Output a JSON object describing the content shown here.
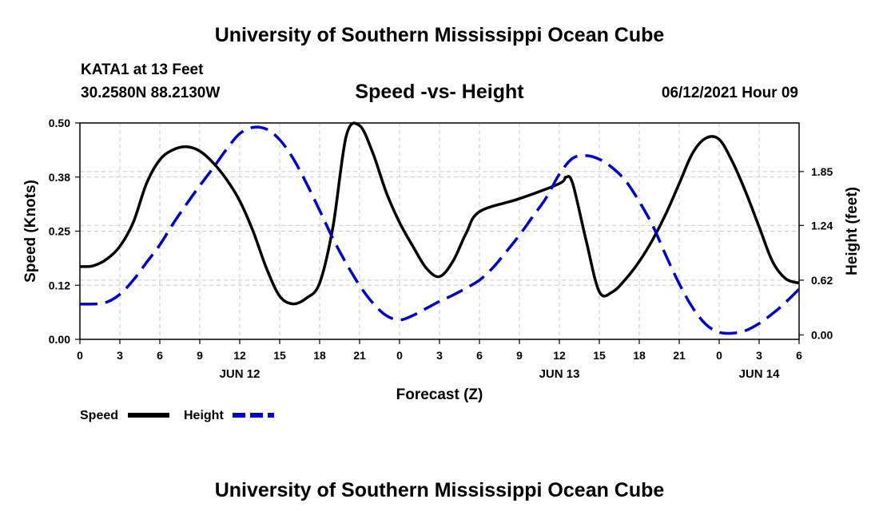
{
  "header": {
    "title": "University of Southern Mississippi Ocean Cube",
    "station": "KATA1 at 13 Feet",
    "coordinates": "30.2580N  88.2130W",
    "subtitle": "Speed -vs- Height",
    "timestamp": "06/12/2021 Hour 09"
  },
  "footer": {
    "title": "University of Southern Mississippi Ocean Cube"
  },
  "chart_data": {
    "type": "line",
    "title": "Speed -vs- Height",
    "xlabel": "Forecast (Z)",
    "ylabel": "Speed (Knots)",
    "y2label": "Height (feet)",
    "xlim": [
      0,
      54
    ],
    "ylim": [
      0,
      0.5
    ],
    "y2lim": [
      -0.05,
      2.4
    ],
    "grid": true,
    "x_tick_positions": [
      0,
      3,
      6,
      9,
      12,
      15,
      18,
      21,
      24,
      27,
      30,
      33,
      36,
      39,
      42,
      45,
      48,
      51,
      54
    ],
    "x_tick_labels": [
      "0",
      "3",
      "6",
      "9",
      "12",
      "15",
      "18",
      "21",
      "0",
      "3",
      "6",
      "9",
      "12",
      "15",
      "18",
      "21",
      "0",
      "3",
      "6"
    ],
    "date_labels": [
      {
        "hour": 12,
        "label": "JUN 12"
      },
      {
        "hour": 36,
        "label": "JUN 13"
      },
      {
        "hour": 51,
        "label": "JUN 14"
      }
    ],
    "y_ticks": [
      0.0,
      0.125,
      0.25,
      0.375,
      0.5
    ],
    "y_tick_labels": [
      "0.00",
      "0.12",
      "0.25",
      "0.38",
      "0.50"
    ],
    "y2_ticks": [
      0.0,
      0.62,
      1.24,
      1.85
    ],
    "y2_tick_labels": [
      "0.00",
      "0.62",
      "1.24",
      "1.85"
    ],
    "legend": {
      "position": "bottom-left",
      "entries": [
        "Speed",
        "Height"
      ]
    },
    "series": [
      {
        "name": "Speed",
        "axis": "left",
        "color": "#000000",
        "dash": "solid",
        "x": [
          0,
          1,
          2,
          3,
          4,
          5,
          6,
          7,
          8,
          9,
          10,
          11,
          12,
          13,
          14,
          15,
          16,
          17,
          18,
          19,
          20,
          21,
          22,
          23,
          24,
          25,
          26,
          27,
          28,
          29,
          30,
          33,
          36,
          36.5,
          37,
          38,
          39,
          40,
          41,
          42,
          43,
          44,
          45,
          46,
          47,
          48,
          49,
          50,
          51,
          52,
          53,
          54
        ],
        "values": [
          0.168,
          0.17,
          0.185,
          0.215,
          0.27,
          0.36,
          0.415,
          0.438,
          0.445,
          0.435,
          0.408,
          0.37,
          0.32,
          0.25,
          0.165,
          0.1,
          0.082,
          0.095,
          0.13,
          0.26,
          0.47,
          0.494,
          0.43,
          0.34,
          0.27,
          0.215,
          0.165,
          0.145,
          0.18,
          0.245,
          0.295,
          0.325,
          0.36,
          0.375,
          0.36,
          0.23,
          0.11,
          0.11,
          0.14,
          0.18,
          0.23,
          0.29,
          0.36,
          0.43,
          0.465,
          0.462,
          0.41,
          0.34,
          0.26,
          0.18,
          0.14,
          0.13
        ]
      },
      {
        "name": "Height",
        "axis": "right",
        "color": "#0000cc",
        "dash": "dashed",
        "x": [
          0,
          1,
          2,
          3,
          4,
          5,
          6,
          7,
          8,
          9,
          10,
          11,
          12,
          13,
          14,
          15,
          16,
          17,
          18,
          19,
          20,
          21,
          22,
          23,
          24,
          25,
          26,
          27,
          28,
          29,
          30,
          31,
          32,
          33,
          34,
          35,
          36,
          37,
          38,
          39,
          40,
          41,
          42,
          43,
          44,
          45,
          46,
          47,
          48,
          49,
          50,
          51,
          52,
          53,
          54
        ],
        "values": [
          0.35,
          0.35,
          0.37,
          0.46,
          0.62,
          0.82,
          1.02,
          1.26,
          1.48,
          1.69,
          1.89,
          2.1,
          2.28,
          2.35,
          2.33,
          2.21,
          2.0,
          1.72,
          1.41,
          1.09,
          0.81,
          0.56,
          0.36,
          0.22,
          0.17,
          0.22,
          0.3,
          0.38,
          0.45,
          0.53,
          0.62,
          0.76,
          0.94,
          1.13,
          1.34,
          1.55,
          1.82,
          2.0,
          2.03,
          1.99,
          1.89,
          1.74,
          1.51,
          1.24,
          0.9,
          0.58,
          0.31,
          0.12,
          0.03,
          0.02,
          0.05,
          0.13,
          0.24,
          0.37,
          0.52
        ]
      }
    ]
  }
}
